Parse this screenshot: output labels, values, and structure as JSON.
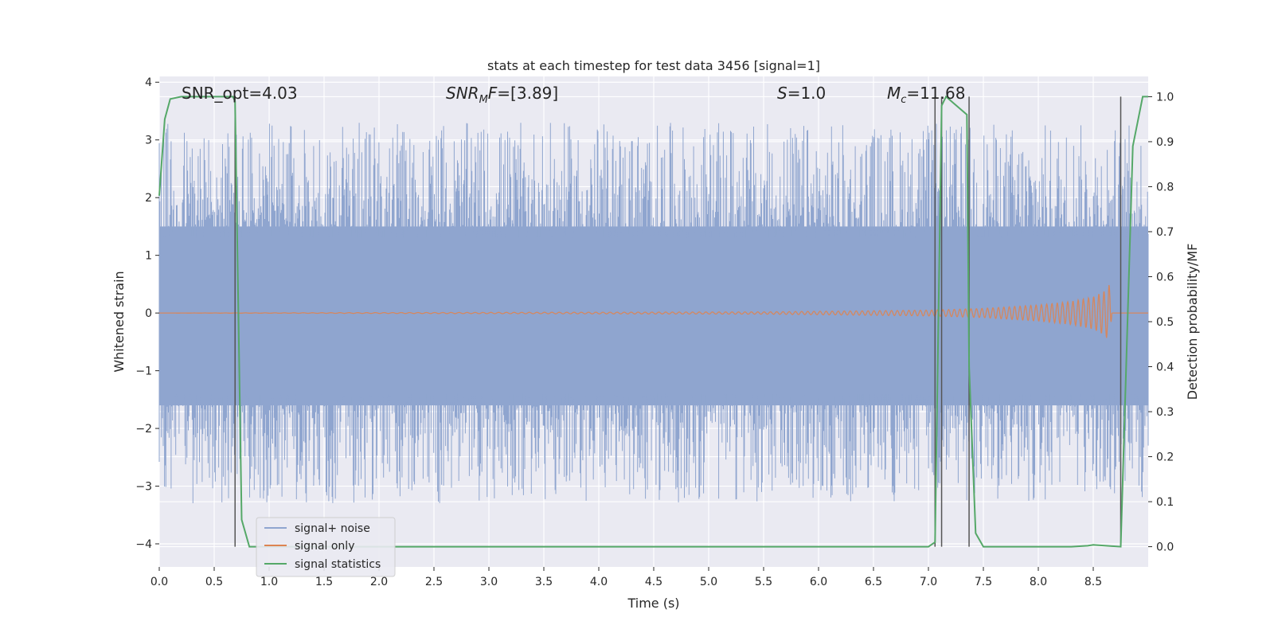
{
  "chart_data": {
    "type": "line",
    "title": "stats at each timestep for test data 3456 [signal=1]",
    "xlabel": "Time (s)",
    "ylabel_left": "Whitened strain",
    "ylabel_right": "Detection probability/MF",
    "xlim": [
      0.0,
      9.0
    ],
    "ylim_left": [
      -4.4,
      4.1
    ],
    "ylim_right": [
      -0.045,
      1.045
    ],
    "x_ticks": [
      "0.0",
      "0.5",
      "1.0",
      "1.5",
      "2.0",
      "2.5",
      "3.0",
      "3.5",
      "4.0",
      "4.5",
      "5.0",
      "5.5",
      "6.0",
      "6.5",
      "7.0",
      "7.5",
      "8.0",
      "8.5"
    ],
    "y_ticks_left": [
      "4",
      "3",
      "2",
      "1",
      "0",
      "−1",
      "−2",
      "−3",
      "−4"
    ],
    "y_ticks_right": [
      "1.0",
      "0.9",
      "0.8",
      "0.7",
      "0.6",
      "0.5",
      "0.4",
      "0.3",
      "0.2",
      "0.1",
      "0.0"
    ],
    "grid": true,
    "legend_position": "lower-left",
    "annotations": {
      "snr_opt": "SNR_opt=4.03",
      "snr_mf": "=[3.89]",
      "s_value": "=1.0",
      "mc_value": "=11.68"
    },
    "colors": {
      "background": "#EAEAF2",
      "noise": "#8FA5CF",
      "signal": "#DD8452",
      "stat": "#55A868",
      "vline": "#555555"
    },
    "series": [
      {
        "name": "signal+ noise",
        "x_range": [
          0.0,
          9.0
        ],
        "band_envelope": [
          1.5,
          -1.6
        ],
        "typical_peak_range": [
          -3.3,
          3.3
        ]
      },
      {
        "name": "signal only",
        "x": [
          0.0,
          5.5,
          7.0,
          7.5,
          8.0,
          8.3,
          8.5,
          8.6,
          8.65,
          8.67,
          8.7
        ],
        "amplitude": [
          0.0,
          0.02,
          0.05,
          0.08,
          0.14,
          0.2,
          0.28,
          0.38,
          0.5,
          0.0,
          0.0
        ]
      },
      {
        "name": "signal statistics",
        "x": [
          0.0,
          0.05,
          0.1,
          0.2,
          0.67,
          0.69,
          0.75,
          0.82,
          7.0,
          7.06,
          7.12,
          7.16,
          7.35,
          7.37,
          7.43,
          7.5,
          8.3,
          8.45,
          8.5,
          8.75,
          8.86,
          8.95,
          9.0
        ],
        "y": [
          0.78,
          0.95,
          0.995,
          1.0,
          1.0,
          0.99,
          0.06,
          0.0,
          0.0,
          0.01,
          0.98,
          1.0,
          0.96,
          0.4,
          0.03,
          0.0,
          0.0,
          0.002,
          0.004,
          0.0,
          0.89,
          1.0,
          1.0
        ]
      }
    ],
    "vertical_lines_x": [
      0.69,
      7.06,
      7.12,
      7.37,
      8.75
    ]
  }
}
